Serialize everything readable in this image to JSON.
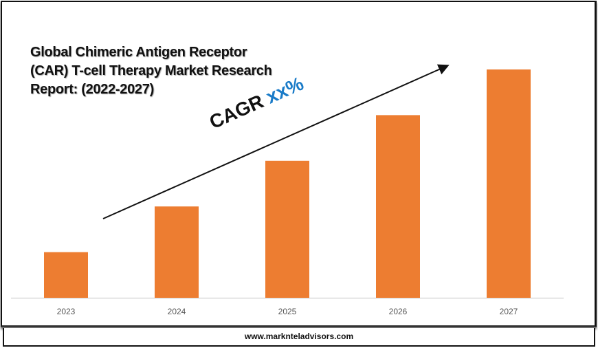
{
  "chart_data": {
    "type": "bar",
    "title": "Global Chimeric Antigen Receptor (CAR) T-cell Therapy Market Research Report: (2022-2027)",
    "title_lines": [
      "Global Chimeric Antigen Receptor",
      "(CAR) T-cell Therapy Market Research",
      "Report: (2022-2027)"
    ],
    "categories": [
      "2023",
      "2024",
      "2025",
      "2026",
      "2027"
    ],
    "values": [
      1,
      2,
      3,
      4,
      5
    ],
    "ylim": [
      0,
      5
    ],
    "xlabel": "",
    "ylabel": "",
    "grid": false,
    "bar_color": "#ED7D31",
    "annotation": {
      "label": "CAGR",
      "value": "xx%",
      "value_color": "#1A7BC8",
      "arrow": "upward trend arrow"
    }
  },
  "footer": {
    "website": "www.marknteladvisors.com"
  }
}
